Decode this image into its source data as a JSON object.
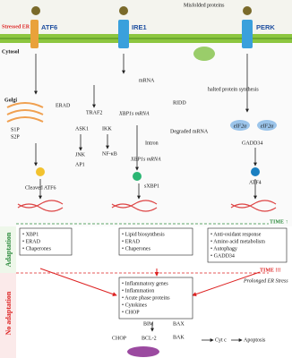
{
  "header": {
    "misfolded": "Misfolded proteins",
    "stressed_er": "Stressed ER",
    "cytosol": "Cytosol",
    "golgi": "Golgi"
  },
  "sensors": {
    "atf6": "ATF6",
    "ire1": "IRE1",
    "perk": "PERK"
  },
  "atf6_branch": {
    "erad": "ERAD",
    "s1p": "S1P",
    "s2p": "S2P",
    "cleaved": "Cleaved ATF6"
  },
  "ire1_branch": {
    "mrna": "mRNA",
    "traf2": "TRAF2",
    "xbp1s_mrna": "XBP1s mRNA",
    "ridd": "RIDD",
    "degraded": "Degraded mRNA",
    "ask1": "ASK1",
    "ikk": "IKK",
    "intron": "Intron",
    "jnk": "JNK",
    "nfkb": "NF-κB",
    "xbp1s_mrna2": "XBP1s mRNA",
    "ap1": "AP1",
    "sxbp1": "sXBP1"
  },
  "perk_branch": {
    "halted": "halted protein synthesis",
    "eif1": "eIF2α",
    "eif2": "eIF2α",
    "gadd34": "GADD34",
    "atf4": "ATF4"
  },
  "time1": "TIME ↑",
  "boxes": {
    "left": [
      "• XBP1",
      "• ERAD",
      "• Chaperones"
    ],
    "middle": [
      "• Lipid biosynthesis",
      "• ERAD",
      "• Chaperones"
    ],
    "right": [
      "• Anti-oxidant response",
      "• Amino acid metabolism",
      "• Autophagy",
      "• GADD34"
    ],
    "bottom": [
      "• Inflammatory genes",
      "• Inflammation",
      "• Acute phase proteins",
      "• Cytokines",
      "• CHOP"
    ]
  },
  "side": {
    "adaptation": "Adaptation",
    "no_adaptation": "No adaptation"
  },
  "time2": "TIME !!!",
  "prolonged": "Prolonged ER Stress",
  "apoptosis": {
    "bim": "BIM",
    "bax": "BAX",
    "chop": "CHOP",
    "bcl2": "BCL-2",
    "bak": "BAK",
    "cytc": "Cyt c",
    "apoptosis": "Apoptosis"
  }
}
